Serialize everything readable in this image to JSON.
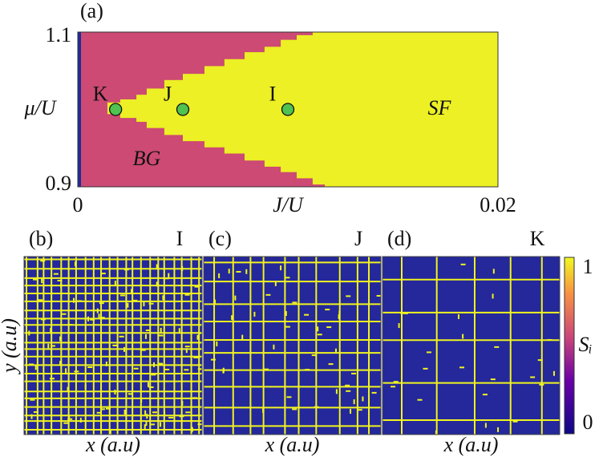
{
  "chart_data": [
    {
      "type": "phase",
      "panel_label": "(a)",
      "xlabel": "J/U",
      "ylabel": "μ/U",
      "xlim": [
        0,
        0.02
      ],
      "ylim": [
        0.9,
        1.1
      ],
      "xticks": [
        0,
        0.02
      ],
      "yticks": [
        0.9,
        1.1
      ],
      "colors": {
        "inside": "#ecf024",
        "outside": "#cc4a74",
        "points": "#4fc24f"
      },
      "boundary": {
        "x": [
          0.00141,
          0.00202,
          0.00279,
          0.00328,
          0.00412,
          0.005,
          0.00603,
          0.00698,
          0.00794,
          0.00889,
          0.00966,
          0.01042,
          0.01118,
          0.01176
        ],
        "upper": [
          1.009,
          1.013,
          1.019,
          1.027,
          1.038,
          1.046,
          1.056,
          1.065,
          1.074,
          1.081,
          1.09,
          1.096,
          1.1,
          1.1
        ],
        "lower": [
          0.994,
          0.989,
          0.984,
          0.976,
          0.967,
          0.959,
          0.951,
          0.943,
          0.934,
          0.926,
          0.919,
          0.911,
          0.903,
          0.9
        ]
      },
      "phases": [
        "SF",
        "BG"
      ],
      "points": {
        "labels": [
          "K",
          "J",
          "I"
        ],
        "x": [
          0.0018,
          0.005,
          0.01
        ],
        "y": [
          1.0,
          1.0,
          1.0
        ]
      }
    },
    {
      "type": "site-map",
      "ylabel": "y (a.u)",
      "panels": [
        {
          "label": "(b)",
          "point": "I",
          "xlabel": "x (a.u)"
        },
        {
          "label": "(c)",
          "point": "J",
          "xlabel": "x (a.u)"
        },
        {
          "label": "(d)",
          "point": "K",
          "xlabel": "x (a.u)"
        }
      ],
      "colorbar": {
        "label": "Sᵢ",
        "lim": [
          0,
          1
        ],
        "ticks": [
          0,
          1
        ]
      }
    }
  ]
}
